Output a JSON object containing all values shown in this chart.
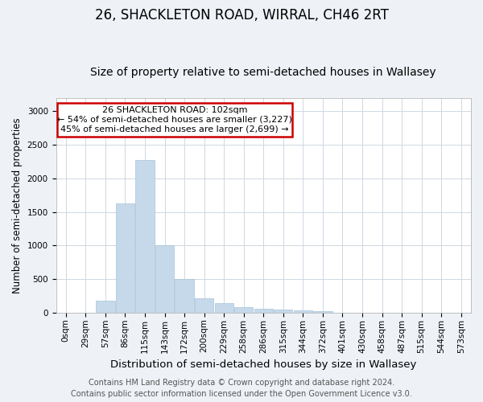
{
  "title": "26, SHACKLETON ROAD, WIRRAL, CH46 2RT",
  "subtitle": "Size of property relative to semi-detached houses in Wallasey",
  "xlabel": "Distribution of semi-detached houses by size in Wallasey",
  "ylabel": "Number of semi-detached properties",
  "footer_line1": "Contains HM Land Registry data © Crown copyright and database right 2024.",
  "footer_line2": "Contains public sector information licensed under the Open Government Licence v3.0.",
  "categories": [
    "0sqm",
    "29sqm",
    "57sqm",
    "86sqm",
    "115sqm",
    "143sqm",
    "172sqm",
    "200sqm",
    "229sqm",
    "258sqm",
    "286sqm",
    "315sqm",
    "344sqm",
    "372sqm",
    "401sqm",
    "430sqm",
    "458sqm",
    "487sqm",
    "515sqm",
    "544sqm",
    "573sqm"
  ],
  "values": [
    0,
    0,
    175,
    1625,
    2275,
    1000,
    500,
    215,
    140,
    85,
    55,
    50,
    30,
    18,
    0,
    0,
    0,
    0,
    0,
    0,
    0
  ],
  "bar_color": "#c5d9ea",
  "bar_edge_color": "#a8c4d8",
  "annotation_title": "26 SHACKLETON ROAD: 102sqm",
  "annotation_line2": "← 54% of semi-detached houses are smaller (3,227)",
  "annotation_line3": "45% of semi-detached houses are larger (2,699) →",
  "annotation_box_color": "#ffffff",
  "annotation_border_color": "#cc0000",
  "ylim": [
    0,
    3200
  ],
  "yticks": [
    0,
    500,
    1000,
    1500,
    2000,
    2500,
    3000
  ],
  "bg_color": "#eef2f7",
  "plot_bg_color": "#ffffff",
  "grid_color": "#cdd8e3",
  "title_fontsize": 12,
  "subtitle_fontsize": 10,
  "xlabel_fontsize": 9.5,
  "ylabel_fontsize": 8.5,
  "tick_fontsize": 7.5,
  "annotation_fontsize": 8,
  "footer_fontsize": 7
}
